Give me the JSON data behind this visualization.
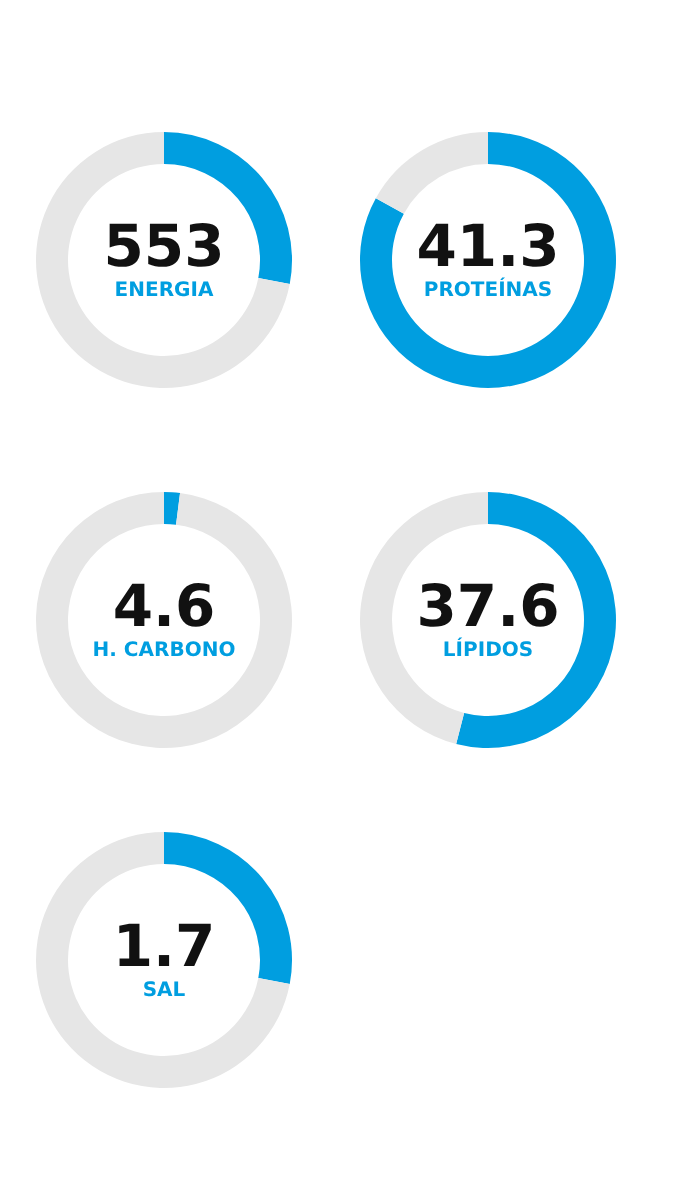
{
  "chart_data": [
    {
      "type": "donut",
      "categories": [
        null,
        null
      ],
      "values": [
        28,
        72
      ],
      "colors": [
        "#009ee0",
        "#e6e6e6"
      ],
      "annotations": [
        "553",
        "ENERGIA"
      ]
    },
    {
      "type": "donut",
      "categories": [
        null,
        null
      ],
      "values": [
        83,
        17
      ],
      "colors": [
        "#009ee0",
        "#e6e6e6"
      ],
      "annotations": [
        "41.3",
        "PROTEÍNAS"
      ]
    },
    {
      "type": "donut",
      "categories": [
        null,
        null
      ],
      "values": [
        2,
        98
      ],
      "colors": [
        "#009ee0",
        "#e6e6e6"
      ],
      "annotations": [
        "4.6",
        "H. CARBONO"
      ]
    },
    {
      "type": "donut",
      "categories": [
        null,
        null
      ],
      "values": [
        54,
        46
      ],
      "colors": [
        "#009ee0",
        "#e6e6e6"
      ],
      "annotations": [
        "37.6",
        "LÍPIDOS"
      ]
    },
    {
      "type": "donut",
      "categories": [
        null,
        null
      ],
      "values": [
        28,
        72
      ],
      "colors": [
        "#009ee0",
        "#e6e6e6"
      ],
      "annotations": [
        "1.7",
        "SAL"
      ]
    }
  ]
}
